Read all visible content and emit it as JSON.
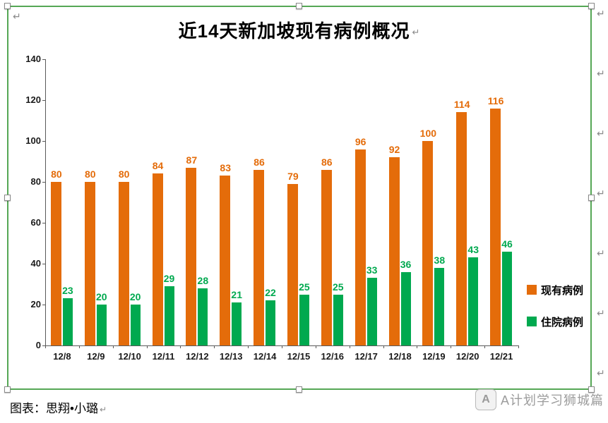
{
  "chart_data": {
    "type": "bar",
    "title": "近14天新加坡现有病例概况",
    "categories": [
      "12/8",
      "12/9",
      "12/10",
      "12/11",
      "12/12",
      "12/13",
      "12/14",
      "12/15",
      "12/16",
      "12/17",
      "12/18",
      "12/19",
      "12/20",
      "12/21"
    ],
    "series": [
      {
        "name": "现有病例",
        "color": "#E46C0A",
        "values": [
          80,
          80,
          80,
          84,
          87,
          83,
          86,
          79,
          86,
          96,
          92,
          100,
          114,
          116
        ]
      },
      {
        "name": "住院病例",
        "color": "#00A94F",
        "values": [
          23,
          20,
          20,
          29,
          28,
          21,
          22,
          25,
          25,
          33,
          36,
          38,
          43,
          46
        ]
      }
    ],
    "xlabel": "",
    "ylabel": "",
    "ylim": [
      0,
      140
    ],
    "yticks": [
      0,
      20,
      40,
      60,
      80,
      100,
      120,
      140
    ],
    "grid": false,
    "legend_position": "right"
  },
  "colors": {
    "frame_border": "#55a755",
    "axis": "#595959"
  },
  "footer": {
    "caption": "图表：思翔•小璐",
    "watermark_text": "A计划学习狮城篇",
    "watermark_logo_letter": "A"
  },
  "marks": {
    "paragraph": "↵"
  }
}
